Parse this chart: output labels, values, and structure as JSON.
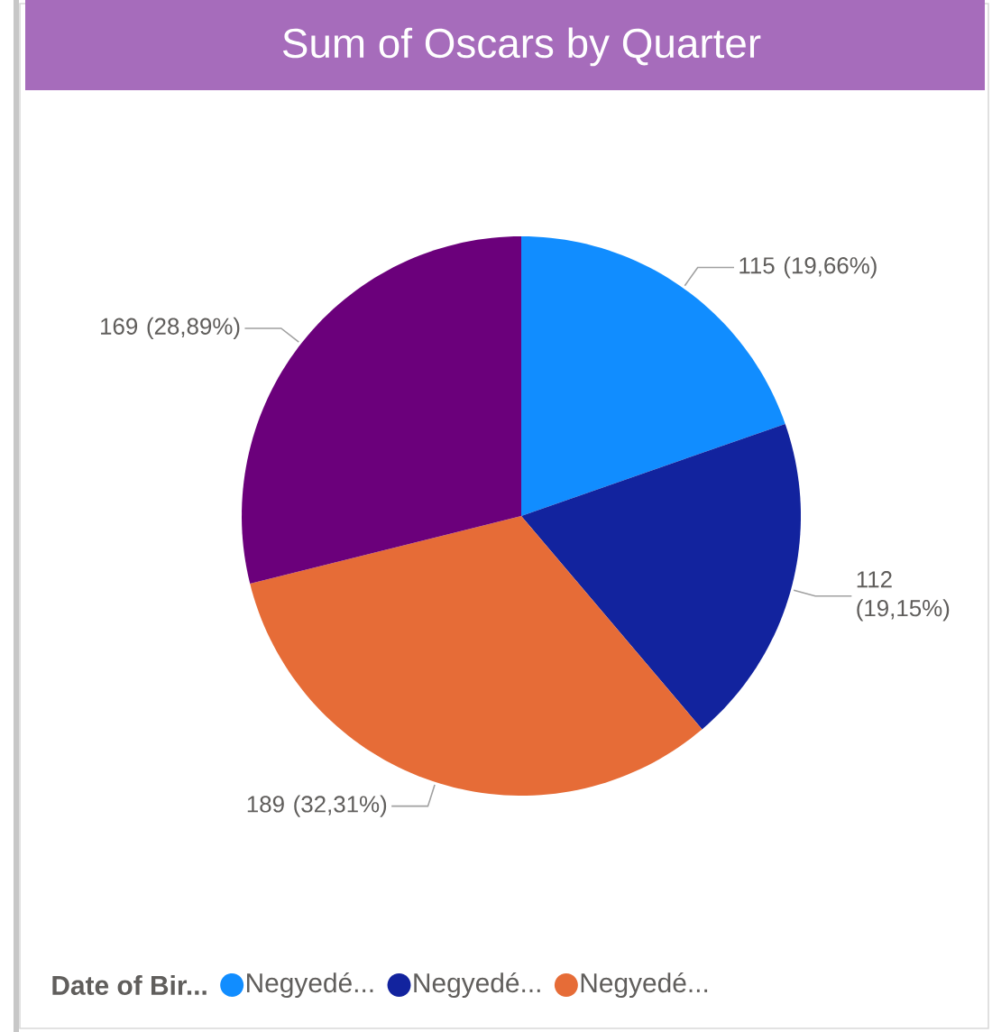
{
  "chart_data": {
    "type": "pie",
    "title": "Sum of Oscars by Quarter",
    "legend_title": "Date of Bir...",
    "categories": [
      "Negyedé...",
      "Negyedé...",
      "Negyedé...",
      null
    ],
    "values": [
      115,
      112,
      189,
      169
    ],
    "colors": [
      "#118dff",
      "#12239e",
      "#e66c37",
      "#6b007b"
    ],
    "value_labels": [
      "115 (19,66%)",
      "112 (19,15%)",
      "189 (32,31%)",
      "169 (28,89%)"
    ],
    "legend": "bottom"
  }
}
